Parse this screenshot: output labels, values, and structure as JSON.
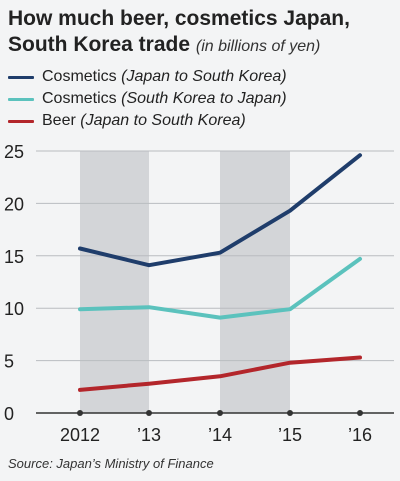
{
  "title": {
    "main": "How much beer, cosmetics Japan, South Korea trade",
    "sub": "(in billions of yen)"
  },
  "legend": [
    {
      "label": "Cosmetics",
      "detail": "(Japan to South Korea)",
      "color": "#1f3d6b"
    },
    {
      "label": "Cosmetics",
      "detail": "(South Korea to Japan)",
      "color": "#5bc2bd"
    },
    {
      "label": "Beer",
      "detail": "(Japan to South Korea)",
      "color": "#b3262b"
    }
  ],
  "chart_data": {
    "type": "line",
    "categories": [
      "2012",
      "’13",
      "’14",
      "’15",
      "’16"
    ],
    "ylim": [
      0,
      25
    ],
    "yticks": [
      0,
      5,
      10,
      15,
      20,
      25
    ],
    "grid": true,
    "shaded_bands": [
      [
        "2012",
        "’13"
      ],
      [
        "’14",
        "’15"
      ]
    ],
    "series": [
      {
        "name": "Cosmetics (Japan to South Korea)",
        "color": "#1f3d6b",
        "values": [
          15.7,
          14.1,
          15.3,
          19.3,
          24.6
        ]
      },
      {
        "name": "Cosmetics (South Korea to Japan)",
        "color": "#5bc2bd",
        "values": [
          9.9,
          10.1,
          9.1,
          9.9,
          14.7
        ]
      },
      {
        "name": "Beer (Japan to South Korea)",
        "color": "#b3262b",
        "values": [
          2.2,
          2.8,
          3.5,
          4.8,
          5.3
        ]
      }
    ]
  },
  "source": "Source: Japan’s Ministry of Finance"
}
